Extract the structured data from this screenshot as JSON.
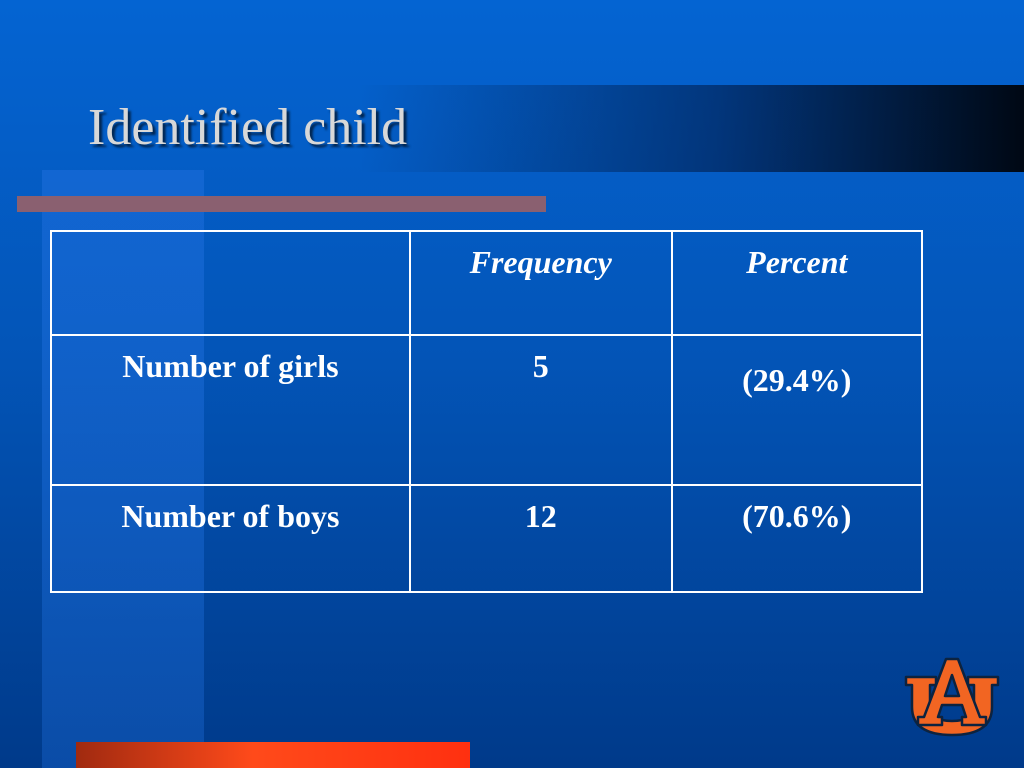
{
  "slide": {
    "title": "Identified child"
  },
  "table": {
    "headers": [
      "",
      "Frequency",
      "Percent"
    ],
    "rows": [
      {
        "label": "Number of girls",
        "frequency": "5",
        "percent": "(29.4%)"
      },
      {
        "label": "Number of boys",
        "frequency": "12",
        "percent": "(70.6%)"
      }
    ]
  },
  "logo": {
    "icon": "auburn-au-logo-icon",
    "text": "AU",
    "color": "#f26522",
    "outline": "#0c2340"
  },
  "colors": {
    "background": "#0464d2",
    "rule": "#8a6070",
    "accent_bar": "#ff4a1a"
  }
}
